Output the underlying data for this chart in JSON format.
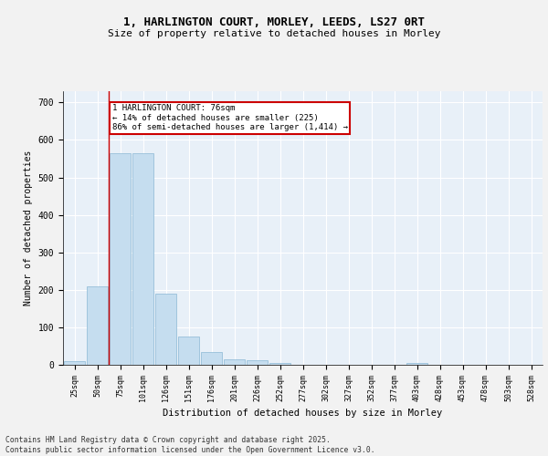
{
  "title_line1": "1, HARLINGTON COURT, MORLEY, LEEDS, LS27 0RT",
  "title_line2": "Size of property relative to detached houses in Morley",
  "xlabel": "Distribution of detached houses by size in Morley",
  "ylabel": "Number of detached properties",
  "categories": [
    "25sqm",
    "50sqm",
    "75sqm",
    "101sqm",
    "126sqm",
    "151sqm",
    "176sqm",
    "201sqm",
    "226sqm",
    "252sqm",
    "277sqm",
    "302sqm",
    "327sqm",
    "352sqm",
    "377sqm",
    "403sqm",
    "428sqm",
    "453sqm",
    "478sqm",
    "503sqm",
    "528sqm"
  ],
  "values": [
    10,
    210,
    565,
    565,
    190,
    75,
    35,
    15,
    12,
    5,
    0,
    0,
    0,
    0,
    0,
    5,
    0,
    0,
    0,
    0,
    0
  ],
  "bar_color": "#c5ddef",
  "bar_edge_color": "#8ab8d4",
  "property_line_x": 2.0,
  "property_line_color": "#cc0000",
  "annotation_text": "1 HARLINGTON COURT: 76sqm\n← 14% of detached houses are smaller (225)\n86% of semi-detached houses are larger (1,414) →",
  "annotation_box_edgecolor": "#cc0000",
  "ylim": [
    0,
    730
  ],
  "yticks": [
    0,
    100,
    200,
    300,
    400,
    500,
    600,
    700
  ],
  "background_color": "#e8f0f8",
  "grid_color": "#ffffff",
  "title_fontsize": 9,
  "subtitle_fontsize": 8,
  "footer": "Contains HM Land Registry data © Crown copyright and database right 2025.\nContains public sector information licensed under the Open Government Licence v3.0."
}
